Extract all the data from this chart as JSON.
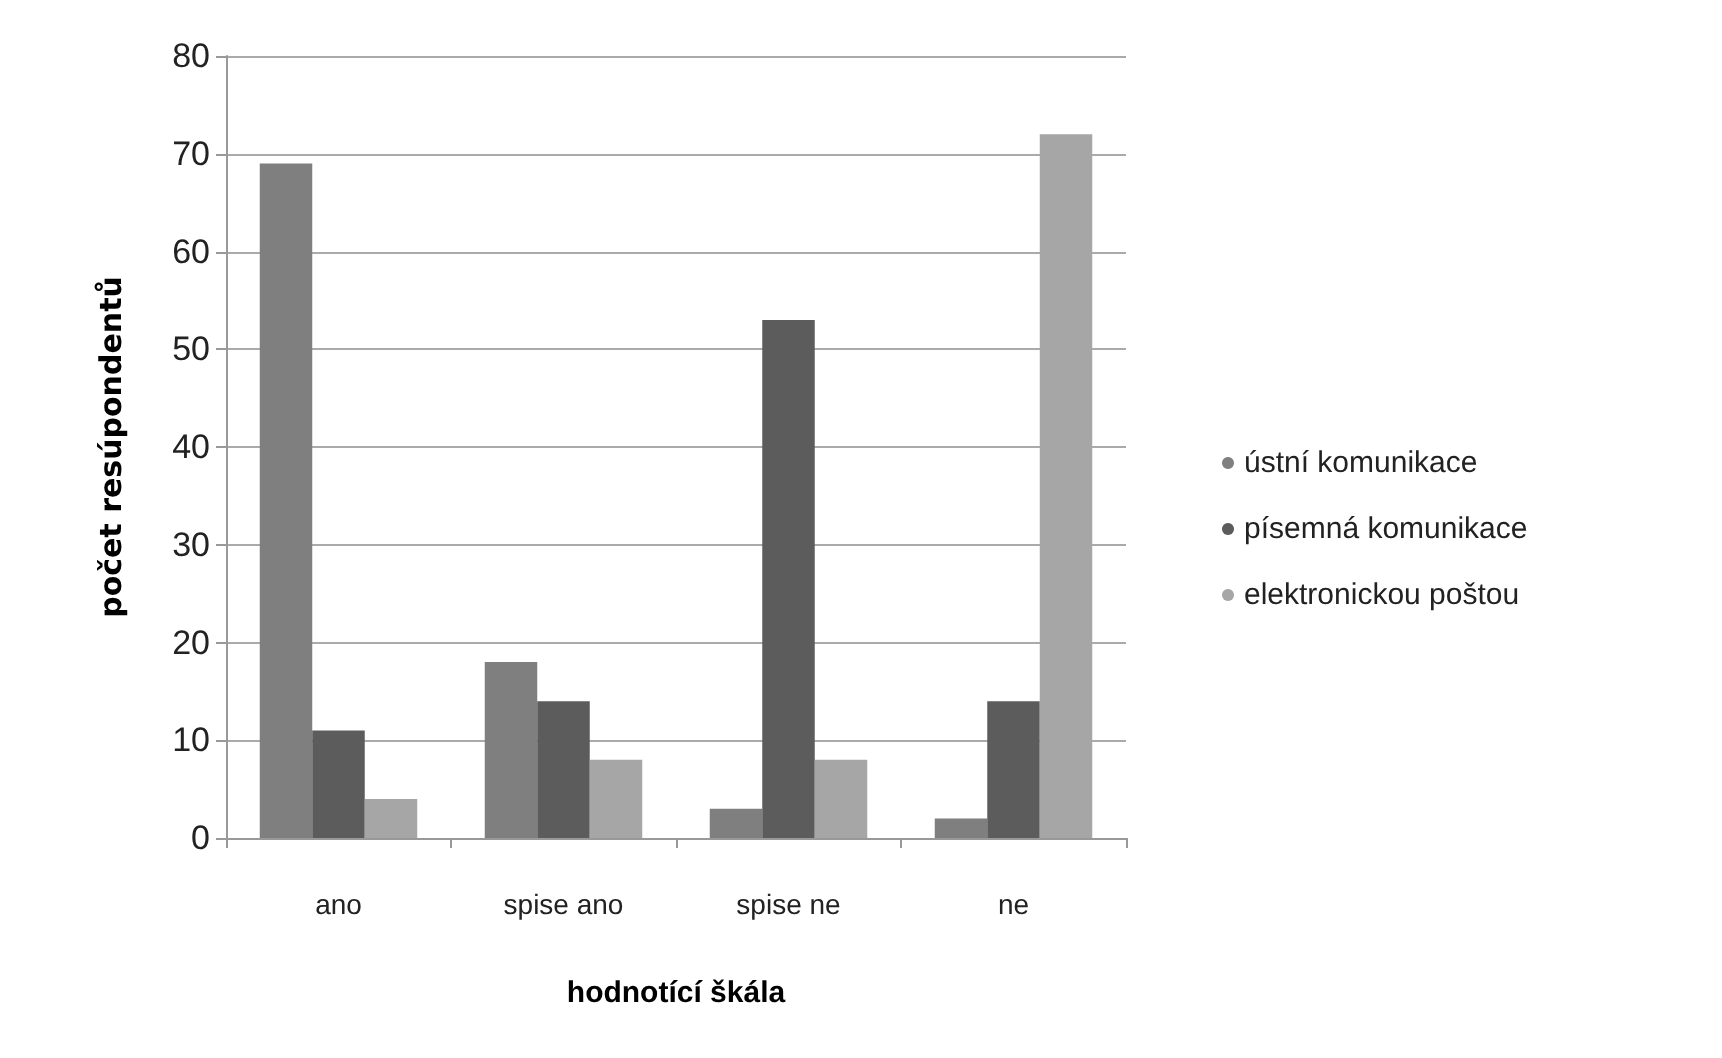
{
  "chart_data": {
    "type": "bar",
    "xlabel": "hodnotící škála",
    "ylabel": "počet resúpondentů",
    "categories": [
      "ano",
      "spise ano",
      "spise ne",
      "ne"
    ],
    "series": [
      {
        "name": "ústní komunikace",
        "color": "#7f7f7f",
        "values": [
          69,
          18,
          3,
          2
        ]
      },
      {
        "name": "písemná komunikace",
        "color": "#5c5c5c",
        "values": [
          11,
          14,
          53,
          14
        ]
      },
      {
        "name": "elektronickou poštou",
        "color": "#a6a6a6",
        "values": [
          4,
          8,
          8,
          72
        ]
      }
    ],
    "ylim": [
      0,
      80
    ],
    "yticks": [
      0,
      10,
      20,
      30,
      40,
      50,
      60,
      70,
      80
    ],
    "grid": "y",
    "legend": "right"
  }
}
